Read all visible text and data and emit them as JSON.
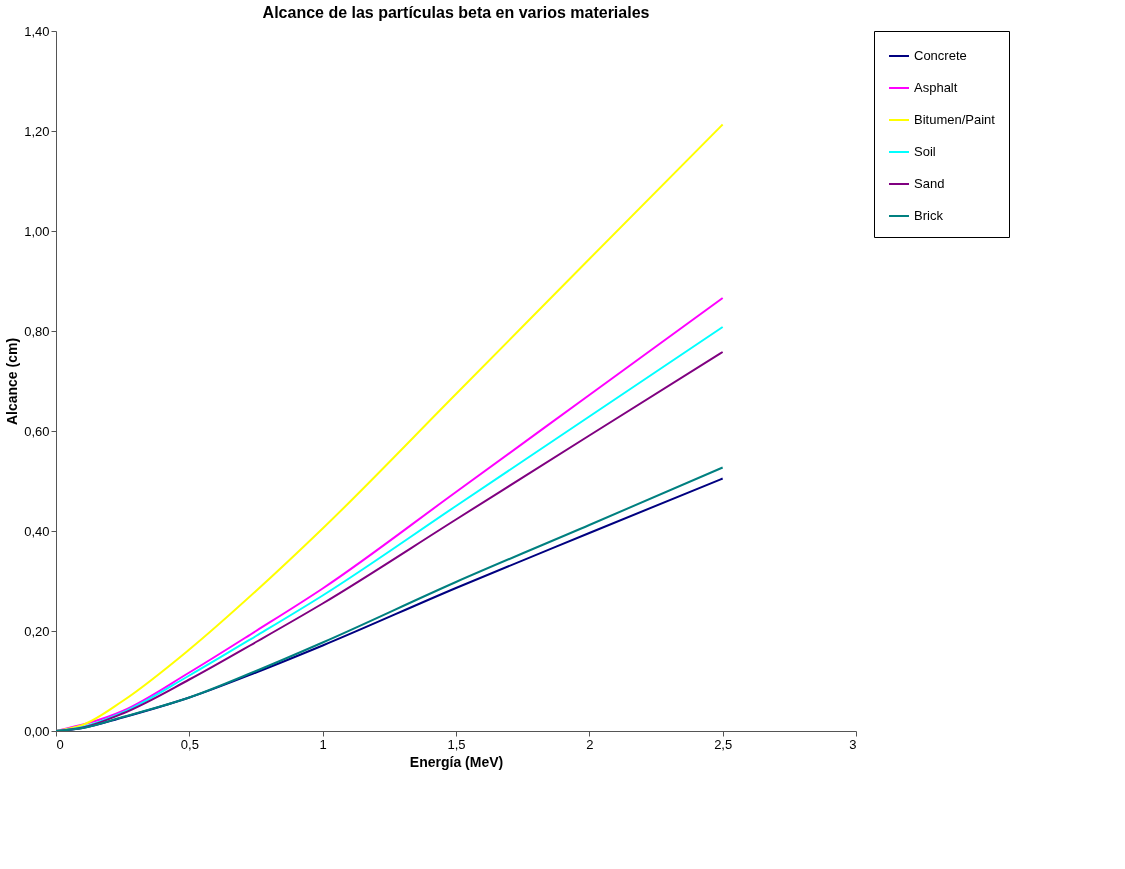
{
  "chart_data": {
    "type": "line",
    "title": "Alcance de las partículas beta en varios materiales",
    "xlabel": "Energía (MeV)",
    "ylabel": "Alcance (cm)",
    "x": [
      0,
      0.1,
      0.25,
      0.5,
      0.75,
      1,
      1.5,
      2,
      2.5
    ],
    "series": [
      {
        "name": "Concrete",
        "color": "#000080",
        "values": [
          0,
          0.006,
          0.027,
          0.067,
          0.117,
          0.171,
          0.286,
          0.396,
          0.505
        ]
      },
      {
        "name": "Asphalt",
        "color": "#ff00ff",
        "x": [
          0,
          0.25,
          0.5,
          0.75,
          1,
          1.5,
          2,
          2.5
        ],
        "values": [
          0,
          0.04,
          0.117,
          0.2,
          0.285,
          0.478,
          0.672,
          0.866
        ]
      },
      {
        "name": "Bitumen/Paint",
        "color": "#ffff00",
        "values": [
          0,
          0.012,
          0.06,
          0.163,
          0.28,
          0.405,
          0.674,
          0.944,
          1.213
        ]
      },
      {
        "name": "Soil",
        "color": "#00ffff",
        "values": [
          0,
          0.008,
          0.037,
          0.111,
          0.19,
          0.271,
          0.45,
          0.629,
          0.808
        ]
      },
      {
        "name": "Sand",
        "color": "#800080",
        "values": [
          0,
          0.007,
          0.035,
          0.103,
          0.178,
          0.255,
          0.423,
          0.591,
          0.758
        ]
      },
      {
        "name": "Brick",
        "color": "#008080",
        "values": [
          0,
          0.006,
          0.028,
          0.067,
          0.12,
          0.177,
          0.298,
          0.412,
          0.527
        ]
      }
    ],
    "xlim": [
      0,
      3
    ],
    "xticks": [
      0,
      {
        "value": 0.5,
        "label": "0,5"
      },
      1,
      {
        "value": 1.5,
        "label": "1,5"
      },
      2,
      {
        "value": 2.5,
        "label": "2,5"
      },
      3
    ],
    "ylim": [
      0,
      1.4
    ],
    "yticks": [
      {
        "value": 0,
        "label": "0,00"
      },
      {
        "value": 0.2,
        "label": "0,20"
      },
      {
        "value": 0.4,
        "label": "0,40"
      },
      {
        "value": 0.6,
        "label": "0,60"
      },
      {
        "value": 0.8,
        "label": "0,80"
      },
      {
        "value": 1.0,
        "label": "1,00"
      },
      {
        "value": 1.2,
        "label": "1,20"
      },
      {
        "value": 1.4,
        "label": "1,40"
      }
    ],
    "grid": false,
    "legend": "right",
    "marker": "none",
    "line_style": "solid"
  }
}
